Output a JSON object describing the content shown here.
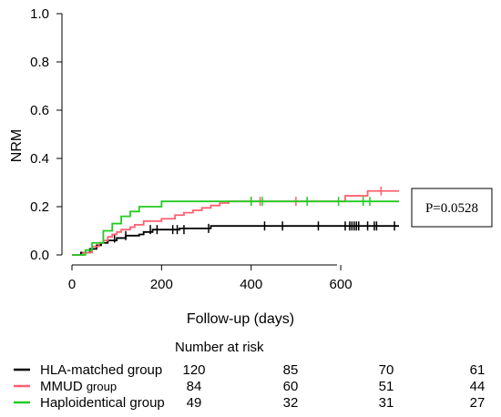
{
  "chart_data": {
    "type": "line",
    "step": true,
    "ylabel": "NRM",
    "xlabel": "Follow-up (days)",
    "xlim": [
      0,
      730
    ],
    "ylim": [
      0,
      1.0
    ],
    "x_ticks": [
      0,
      200,
      400,
      600
    ],
    "x_tick_labels": [
      "0",
      "200",
      "400",
      "600"
    ],
    "y_ticks": [
      0.0,
      0.2,
      0.4,
      0.6,
      0.8,
      1.0
    ],
    "y_tick_labels": [
      "0.0",
      "0.2",
      "0.4",
      "0.6",
      "0.8",
      "1.0"
    ],
    "grid": false,
    "annotation": "P=0.0528",
    "series": [
      {
        "name": "HLA-matched group",
        "color": "#000000",
        "points": [
          [
            0,
            0
          ],
          [
            20,
            0.01
          ],
          [
            40,
            0.025
          ],
          [
            55,
            0.04
          ],
          [
            65,
            0.05
          ],
          [
            80,
            0.06
          ],
          [
            100,
            0.07
          ],
          [
            120,
            0.08
          ],
          [
            150,
            0.085
          ],
          [
            160,
            0.095
          ],
          [
            180,
            0.105
          ],
          [
            240,
            0.11
          ],
          [
            310,
            0.12
          ],
          [
            730,
            0.12
          ]
        ],
        "censored": [
          95,
          120,
          175,
          190,
          225,
          235,
          250,
          305,
          430,
          470,
          550,
          610,
          620,
          625,
          630,
          635,
          640,
          660,
          675,
          680,
          720
        ],
        "censored_y": [
          0.07,
          0.08,
          0.105,
          0.105,
          0.105,
          0.105,
          0.105,
          0.11,
          0.12,
          0.12,
          0.12,
          0.12,
          0.12,
          0.12,
          0.12,
          0.12,
          0.12,
          0.12,
          0.12,
          0.12,
          0.12
        ]
      },
      {
        "name": "MMUD",
        "color": "#ff6070",
        "points": [
          [
            0,
            0
          ],
          [
            25,
            0.01
          ],
          [
            45,
            0.035
          ],
          [
            60,
            0.05
          ],
          [
            70,
            0.06
          ],
          [
            80,
            0.075
          ],
          [
            90,
            0.085
          ],
          [
            100,
            0.095
          ],
          [
            110,
            0.105
          ],
          [
            130,
            0.115
          ],
          [
            140,
            0.125
          ],
          [
            160,
            0.14
          ],
          [
            200,
            0.15
          ],
          [
            230,
            0.165
          ],
          [
            250,
            0.175
          ],
          [
            270,
            0.185
          ],
          [
            290,
            0.195
          ],
          [
            310,
            0.205
          ],
          [
            330,
            0.215
          ],
          [
            350,
            0.222
          ],
          [
            580,
            0.222
          ],
          [
            610,
            0.245
          ],
          [
            660,
            0.265
          ],
          [
            730,
            0.265
          ]
        ],
        "censored": [
          400,
          420,
          500,
          690
        ],
        "censored_y": [
          0.222,
          0.222,
          0.222,
          0.265
        ]
      },
      {
        "name": "Haploidentical group",
        "color": "#22cc22",
        "points": [
          [
            0,
            0
          ],
          [
            30,
            0.02
          ],
          [
            45,
            0.05
          ],
          [
            70,
            0.1
          ],
          [
            90,
            0.13
          ],
          [
            110,
            0.16
          ],
          [
            130,
            0.18
          ],
          [
            150,
            0.2
          ],
          [
            200,
            0.222
          ],
          [
            730,
            0.222
          ]
        ],
        "censored": [
          400,
          425,
          525,
          595,
          650,
          665
        ],
        "censored_y": [
          0.222,
          0.222,
          0.222,
          0.222,
          0.222,
          0.222
        ]
      }
    ]
  },
  "risk_table": {
    "title": "Number at risk",
    "rows": [
      {
        "label_main": "HLA-matched group",
        "label_small": "",
        "color": "#000000",
        "values": [
          "120",
          "85",
          "70",
          "61"
        ]
      },
      {
        "label_main": "MMUD ",
        "label_small": "group",
        "color": "#ff6070",
        "values": [
          "84",
          "60",
          "51",
          "44"
        ]
      },
      {
        "label_main": "Haploidentical group",
        "label_small": "",
        "color": "#22cc22",
        "values": [
          "49",
          "32",
          "31",
          "27"
        ]
      }
    ]
  }
}
